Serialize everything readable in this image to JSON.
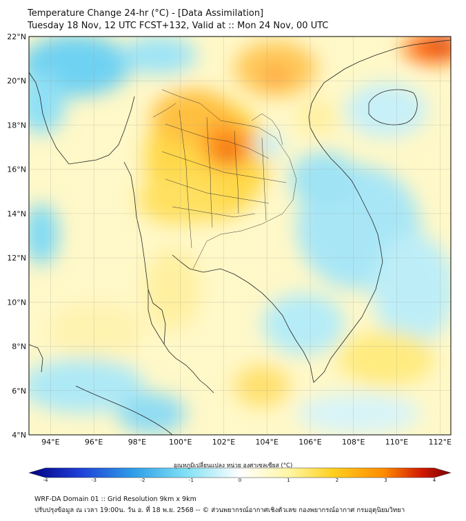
{
  "header": {
    "title": "Temperature Change 24-hr (°C) - [Data Assimilation]",
    "subtitle": "Tuesday 18 Nov, 12 UTC FCST+132, Valid at :: Mon 24 Nov, 00 UTC"
  },
  "map": {
    "lat_range": [
      4,
      22
    ],
    "lon_range": [
      93,
      112.5
    ],
    "lat_labels": [
      "22°N",
      "20°N",
      "18°N",
      "16°N",
      "14°N",
      "12°N",
      "10°N",
      "8°N",
      "6°N",
      "4°N"
    ],
    "lon_labels": [
      "94°E",
      "96°E",
      "98°E",
      "100°E",
      "102°E",
      "104°E",
      "106°E",
      "108°E",
      "110°E",
      "112°E"
    ]
  },
  "colorbar": {
    "label": "อุณหภูมิเปลี่ยนแปลง หน่วย องศาเซลเซียส (°C)",
    "ticks": [
      "-4",
      "-3",
      "-2",
      "-1",
      "0",
      "1",
      "2",
      "3",
      "4"
    ],
    "range": [
      -4,
      4
    ],
    "colors": [
      "#000080",
      "#1f3fd6",
      "#2f9fe8",
      "#7fe0f5",
      "#ffffff",
      "#fff5a0",
      "#ffd020",
      "#ff8c00",
      "#d21a00",
      "#7a0000"
    ]
  },
  "footer": {
    "line1": "WRF-DA Domain 01 :: Grid Resolution 9km x 9km",
    "line2": "ปรับปรุงข้อมูล ณ เวลา 19:00น. วัน อ. ที่ 18 พ.ย. 2568 -- © ส่วนพยากรณ์อากาศเชิงตัวเลข กองพยากรณ์อากาศ กรมอุตุนิยมวิทยา"
  }
}
